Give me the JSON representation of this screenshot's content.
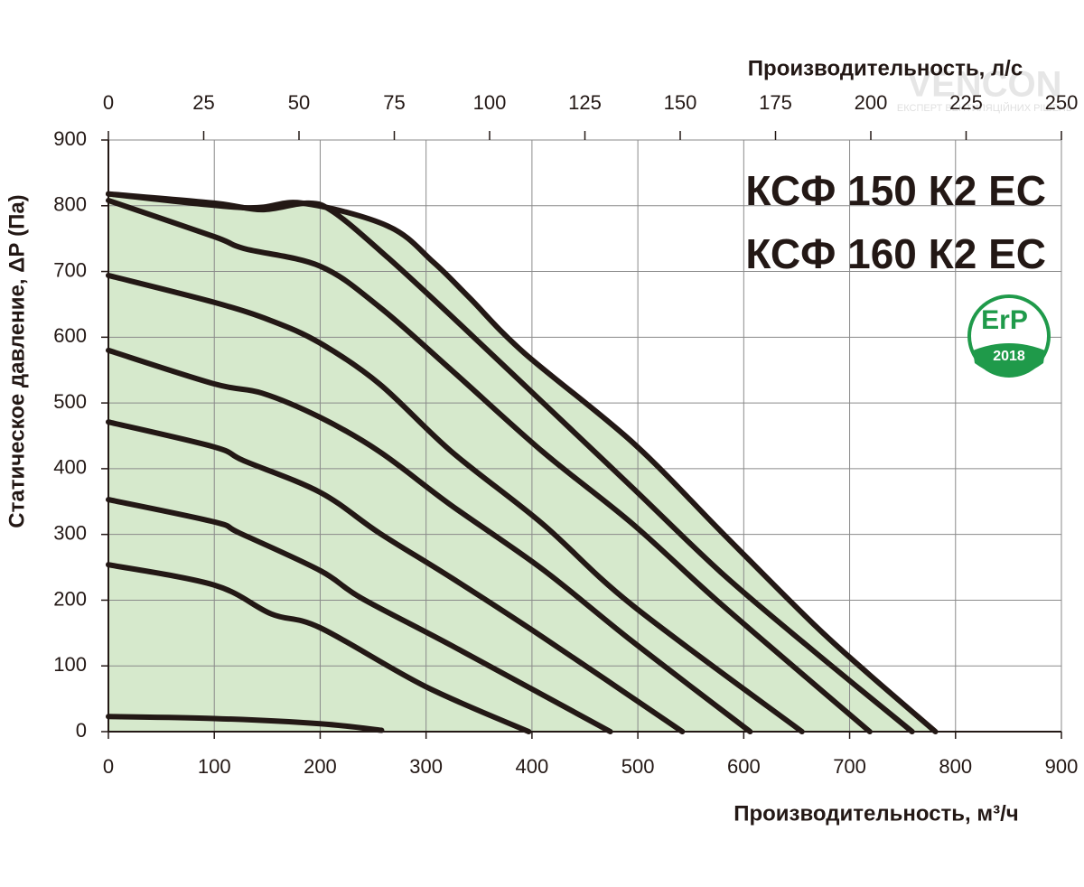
{
  "chart_data": {
    "type": "line",
    "title": "КСФ 150 К2 ЕС",
    "subtitle": "КСФ 160 К2 ЕС",
    "x_label": "Производительность, м³/ч",
    "x2_label": "Производительность, л/с",
    "y_label": "Статическое давление, ΔР (Па)",
    "badge": {
      "text": "ErP",
      "year": "2018",
      "color": "#1f9a4a"
    },
    "watermark": {
      "text": "VENCON",
      "subtext": "ЕКСПЕРТ ВЕНТИЛЯЦІЙНИХ РІШЕНЬ"
    },
    "xlim": [
      0,
      900
    ],
    "xticks": [
      0,
      100,
      200,
      300,
      400,
      500,
      600,
      700,
      800,
      900
    ],
    "x2lim": [
      0,
      250
    ],
    "x2ticks": [
      0,
      25,
      50,
      75,
      100,
      125,
      150,
      175,
      200,
      225,
      250
    ],
    "ylim": [
      0,
      900
    ],
    "yticks": [
      0,
      100,
      200,
      300,
      400,
      500,
      600,
      700,
      800,
      900
    ],
    "grid": true,
    "area_color": "#d6e9cc",
    "line_color": "#231815",
    "series": [
      {
        "x": [
          0,
          100,
          200,
          258
        ],
        "values": [
          23,
          20,
          12,
          2
        ]
      },
      {
        "x": [
          0,
          100,
          154,
          200,
          299,
          397
        ],
        "values": [
          254,
          223,
          179,
          158,
          69,
          0
        ]
      },
      {
        "x": [
          0,
          100,
          124,
          200,
          239,
          324,
          474
        ],
        "values": [
          353,
          319,
          302,
          245,
          203,
          131,
          0
        ]
      },
      {
        "x": [
          0,
          100,
          128,
          200,
          256,
          324,
          410,
          542
        ],
        "values": [
          471,
          433,
          412,
          364,
          302,
          234,
          144,
          0
        ]
      },
      {
        "x": [
          0,
          100,
          145,
          200,
          256,
          324,
          410,
          495,
          606
        ],
        "values": [
          580,
          529,
          515,
          478,
          426,
          344,
          247,
          137,
          0
        ]
      },
      {
        "x": [
          0,
          100,
          154,
          200,
          256,
          324,
          410,
          495,
          655
        ],
        "values": [
          694,
          653,
          625,
          591,
          529,
          426,
          316,
          192,
          0
        ]
      },
      {
        "x": [
          0,
          100,
          128,
          200,
          256,
          324,
          410,
          495,
          580,
          719
        ],
        "values": [
          808,
          753,
          735,
          708,
          646,
          550,
          426,
          316,
          192,
          0
        ]
      },
      {
        "x": [
          0,
          100,
          145,
          188,
          213,
          264,
          324,
          410,
          495,
          580,
          665,
          759
        ],
        "values": [
          818,
          804,
          794,
          804,
          790,
          721,
          632,
          501,
          371,
          240,
          124,
          0
        ]
      },
      {
        "x": [
          0,
          128,
          183,
          264,
          307,
          341,
          392,
          495,
          580,
          665,
          717,
          781
        ],
        "values": [
          818,
          797,
          804,
          769,
          714,
          660,
          577,
          440,
          302,
          165,
          89,
          0
        ]
      }
    ]
  }
}
